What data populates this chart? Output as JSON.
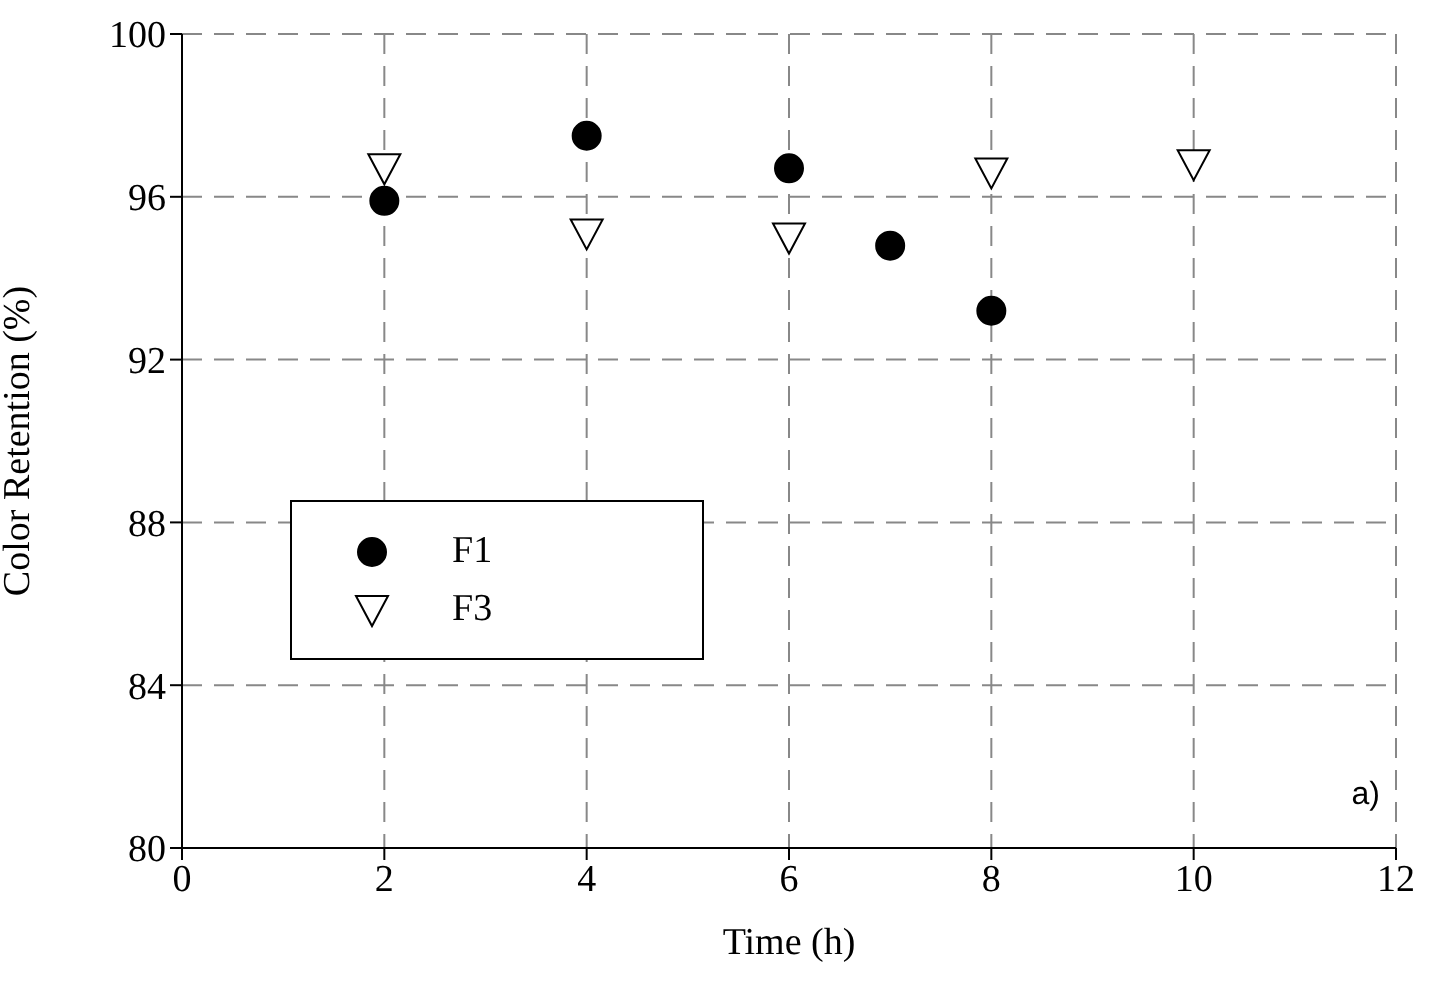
{
  "chart_data": {
    "type": "scatter",
    "xlabel": "Time (h)",
    "ylabel": "Color Retention (%)",
    "xlim": [
      0,
      12
    ],
    "xticks": [
      0,
      2,
      4,
      6,
      8,
      10,
      12
    ],
    "ylim": [
      80,
      100
    ],
    "yticks": [
      80,
      84,
      88,
      92,
      96,
      100
    ],
    "grid": true,
    "legend": "left",
    "annotations": [
      "a)"
    ],
    "series": [
      {
        "name": "F1",
        "color": "#000000",
        "marker": "circle",
        "x": [
          2,
          4,
          6,
          7,
          8
        ],
        "values": [
          95.9,
          97.5,
          96.7,
          94.8,
          93.2
        ]
      },
      {
        "name": "F3",
        "color": "#000000",
        "marker": "triangle",
        "x": [
          2,
          4,
          6,
          8,
          10
        ],
        "values": [
          96.7,
          95.1,
          95.0,
          96.6,
          96.8
        ]
      }
    ]
  }
}
